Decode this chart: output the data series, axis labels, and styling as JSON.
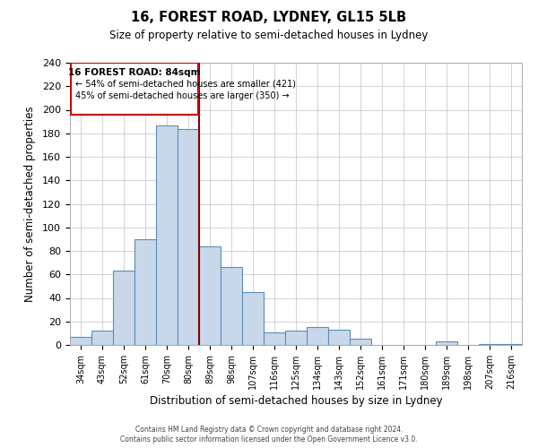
{
  "title": "16, FOREST ROAD, LYDNEY, GL15 5LB",
  "subtitle": "Size of property relative to semi-detached houses in Lydney",
  "xlabel": "Distribution of semi-detached houses by size in Lydney",
  "ylabel": "Number of semi-detached properties",
  "bar_labels": [
    "34sqm",
    "43sqm",
    "52sqm",
    "61sqm",
    "70sqm",
    "80sqm",
    "89sqm",
    "98sqm",
    "107sqm",
    "116sqm",
    "125sqm",
    "134sqm",
    "143sqm",
    "152sqm",
    "161sqm",
    "171sqm",
    "180sqm",
    "189sqm",
    "198sqm",
    "207sqm",
    "216sqm"
  ],
  "bar_values": [
    7,
    12,
    63,
    90,
    187,
    184,
    84,
    66,
    45,
    11,
    12,
    15,
    13,
    5,
    0,
    0,
    0,
    3,
    0,
    1,
    1
  ],
  "bar_color": "#c8d8ea",
  "bar_edge_color": "#5b8db8",
  "ylim": [
    0,
    240
  ],
  "yticks": [
    0,
    20,
    40,
    60,
    80,
    100,
    120,
    140,
    160,
    180,
    200,
    220,
    240
  ],
  "annotation_line1": "16 FOREST ROAD: 84sqm",
  "annotation_line2": "← 54% of semi-detached houses are smaller (421)",
  "annotation_line3": "45% of semi-detached houses are larger (350) →",
  "vline_color": "#8b0000",
  "box_edge_color": "#cc0000",
  "footer_line1": "Contains HM Land Registry data © Crown copyright and database right 2024.",
  "footer_line2": "Contains public sector information licensed under the Open Government Licence v3.0.",
  "background_color": "#ffffff",
  "grid_color": "#cccccc"
}
